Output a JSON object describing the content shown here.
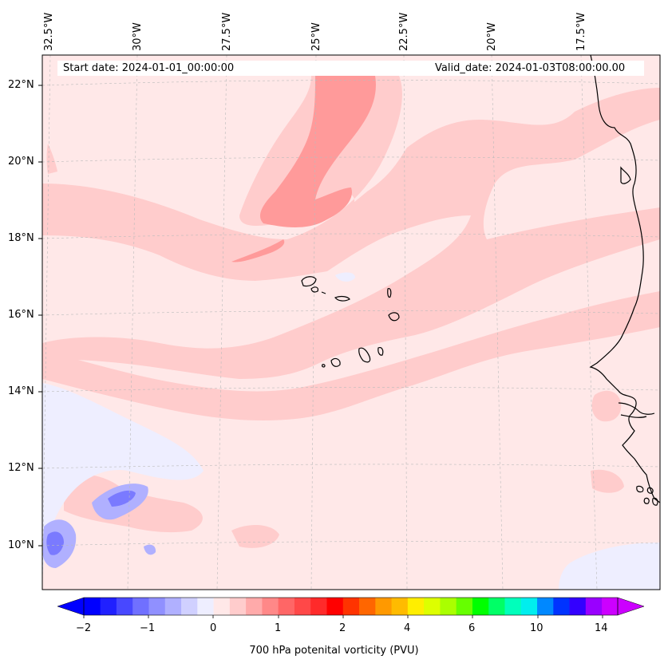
{
  "map": {
    "start_date": "Start date: 2024-01-01_00:00:00",
    "valid_date": "Valid_date: 2024-01-03T08:00:00.00",
    "lon_labels": [
      "32.5°W",
      "30°W",
      "27.5°W",
      "25°W",
      "22.5°W",
      "20°W",
      "17.5°W"
    ],
    "lat_labels": [
      "22°N",
      "20°N",
      "18°N",
      "16°N",
      "14°N",
      "12°N",
      "10°N"
    ],
    "colorbar": {
      "title": "700 hPa potenital vorticity (PVU)",
      "tick_labels": [
        "−2",
        "−1",
        "0",
        "1",
        "2",
        "4",
        "6",
        "10",
        "14"
      ],
      "colors": [
        "#0000ff",
        "#2020ff",
        "#4848ff",
        "#7070ff",
        "#9090ff",
        "#b0b0ff",
        "#d0d0ff",
        "#eeeeff",
        "#ffe8e8",
        "#ffcccc",
        "#ffaaaa",
        "#ff8888",
        "#ff6666",
        "#ff4848",
        "#ff2a2a",
        "#ff0000",
        "#ff3300",
        "#ff6600",
        "#ff9900",
        "#ffbb00",
        "#ffee00",
        "#ddff00",
        "#aaff00",
        "#66ff00",
        "#00ff00",
        "#00ff66",
        "#00ffbb",
        "#00eeee",
        "#0088ff",
        "#0033ff",
        "#3300ff",
        "#9900ff",
        "#cc00ff"
      ],
      "under_color": "#0000ff",
      "over_color": "#cc00ff"
    },
    "colors": {
      "background": "#ffe8e8",
      "light_pink": "#ffcccc",
      "medium_pink": "#ff9a9a",
      "light_blue": "#eeeeff",
      "blue": "#b0b0ff",
      "deep_blue": "#7a7aff",
      "coast": "#000000"
    }
  }
}
